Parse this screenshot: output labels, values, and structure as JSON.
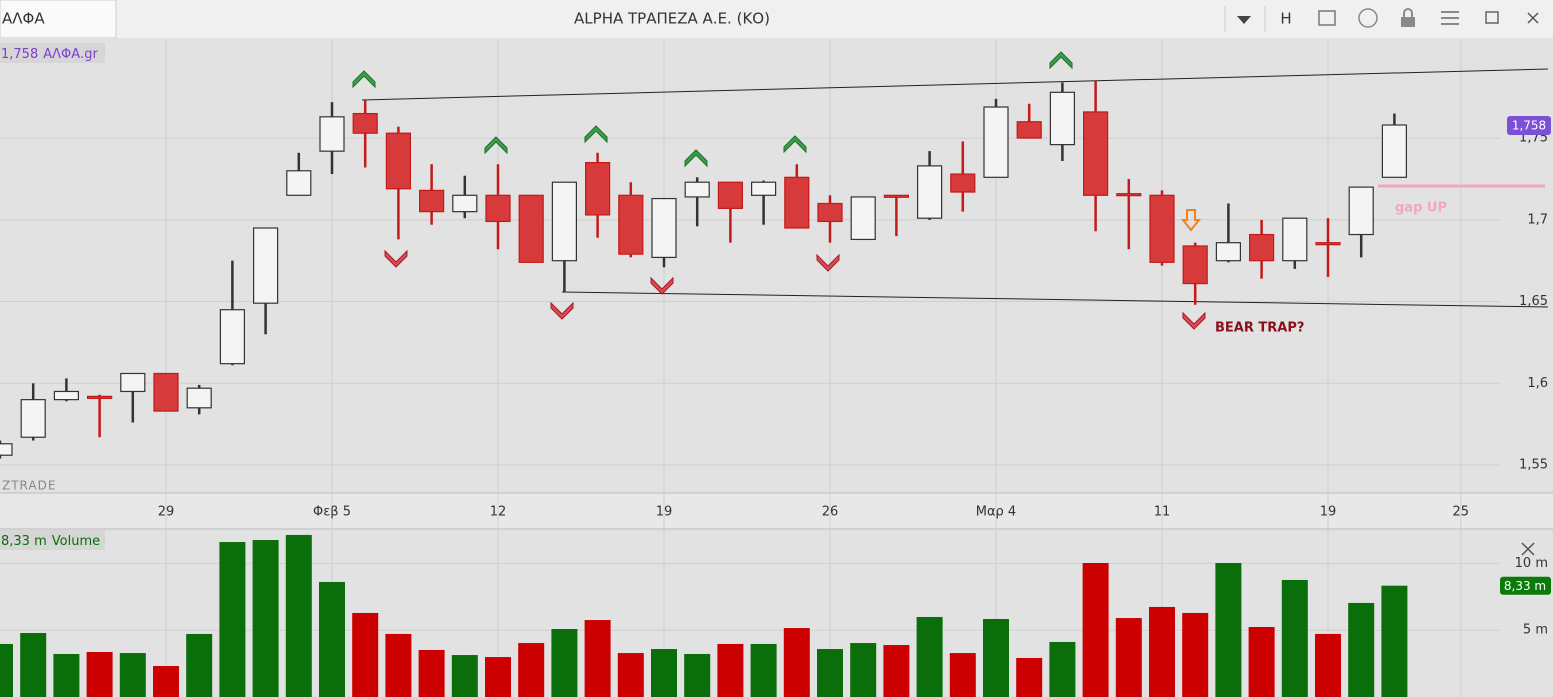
{
  "window": {
    "tab": "ΑΛΦΑ",
    "title": "ALPHA ΤΡΑΠΕΖΑ Α.Ε. (ΚΟ)",
    "button": "H"
  },
  "watermark": "ZTRADE",
  "chart_data": [
    {
      "type": "candlestick",
      "series_name": "ΑΛΦΑ.gr",
      "last_label": "1,758",
      "categories": [
        null,
        null,
        null,
        null,
        null,
        "29",
        null,
        null,
        null,
        null,
        "Φεβ 5",
        null,
        null,
        null,
        null,
        "12",
        null,
        null,
        null,
        null,
        "19",
        null,
        null,
        null,
        null,
        "26",
        null,
        null,
        null,
        null,
        "Μαρ 4",
        null,
        null,
        null,
        null,
        "11",
        null,
        null,
        null,
        null,
        "19",
        null,
        null,
        null,
        "25"
      ],
      "open": [
        1.556,
        1.567,
        1.59,
        1.592,
        1.595,
        1.606,
        1.585,
        1.612,
        1.649,
        1.715,
        1.742,
        1.765,
        1.753,
        1.718,
        1.705,
        1.715,
        1.715,
        1.675,
        1.735,
        1.715,
        1.677,
        1.714,
        1.723,
        1.715,
        1.726,
        1.71,
        1.688,
        1.715,
        1.701,
        1.728,
        1.726,
        1.76,
        1.746,
        1.766,
        1.716,
        1.715,
        1.684,
        1.675,
        1.691,
        1.675,
        1.686,
        1.691,
        1.726,
        null,
        null
      ],
      "high": [
        1.565,
        1.6,
        1.603,
        1.593,
        1.606,
        1.606,
        1.599,
        1.675,
        1.695,
        1.741,
        1.772,
        1.773,
        1.757,
        1.734,
        1.727,
        1.734,
        1.715,
        1.723,
        1.741,
        1.723,
        1.713,
        1.726,
        1.723,
        1.724,
        1.734,
        1.715,
        1.714,
        1.715,
        1.742,
        1.748,
        1.774,
        1.771,
        1.784,
        1.785,
        1.725,
        1.718,
        1.686,
        1.71,
        1.7,
        1.701,
        1.701,
        1.72,
        1.765,
        null,
        null
      ],
      "low": [
        1.554,
        1.565,
        1.589,
        1.567,
        1.576,
        1.583,
        1.581,
        1.611,
        1.63,
        1.715,
        1.728,
        1.732,
        1.688,
        1.697,
        1.701,
        1.682,
        1.674,
        1.656,
        1.689,
        1.677,
        1.671,
        1.696,
        1.686,
        1.697,
        1.695,
        1.686,
        1.688,
        1.69,
        1.7,
        1.705,
        1.726,
        1.75,
        1.736,
        1.693,
        1.682,
        1.672,
        1.648,
        1.674,
        1.664,
        1.67,
        1.665,
        1.677,
        1.726,
        null,
        null
      ],
      "close": [
        1.563,
        1.59,
        1.595,
        1.591,
        1.606,
        1.583,
        1.597,
        1.645,
        1.695,
        1.73,
        1.763,
        1.753,
        1.719,
        1.705,
        1.715,
        1.699,
        1.674,
        1.723,
        1.703,
        1.679,
        1.713,
        1.723,
        1.707,
        1.723,
        1.695,
        1.699,
        1.714,
        1.714,
        1.733,
        1.717,
        1.769,
        1.75,
        1.778,
        1.715,
        1.715,
        1.674,
        1.661,
        1.686,
        1.675,
        1.701,
        1.685,
        1.72,
        1.758,
        null,
        null
      ],
      "up_color": "#f4f4f4",
      "down_color": "#d63a3a",
      "ylim": [
        1.5335,
        1.81
      ],
      "yticks": [
        {
          "value": 1.55,
          "label": "1,55"
        },
        {
          "value": 1.6,
          "label": "1,6"
        },
        {
          "value": 1.65,
          "label": "1,65"
        },
        {
          "value": 1.7,
          "label": "1,7"
        },
        {
          "value": 1.75,
          "label": "1,75"
        }
      ],
      "annotations": [
        "BEAR TRAP?",
        "gap UP"
      ],
      "grid": true
    },
    {
      "type": "bar",
      "series_name": "Volume",
      "last_label": "8,33 m",
      "values": [
        3.97,
        4.79,
        3.22,
        3.37,
        3.29,
        2.32,
        4.72,
        11.6,
        11.75,
        12.13,
        8.61,
        6.29,
        4.72,
        3.52,
        3.14,
        2.99,
        4.04,
        5.09,
        5.76,
        3.29,
        3.59,
        3.22,
        3.97,
        3.97,
        5.16,
        3.59,
        4.04,
        3.89,
        5.99,
        3.29,
        5.84,
        2.92,
        4.12,
        10.03,
        5.91,
        6.74,
        6.29,
        10.03,
        5.24,
        8.76,
        4.72,
        7.04,
        8.33
      ],
      "colors": [
        "#0a6e0a",
        "#0a6e0a",
        "#0a6e0a",
        "#cc0000",
        "#0a6e0a",
        "#cc0000",
        "#0a6e0a",
        "#0a6e0a",
        "#0a6e0a",
        "#0a6e0a",
        "#0a6e0a",
        "#cc0000",
        "#cc0000",
        "#cc0000",
        "#0a6e0a",
        "#cc0000",
        "#cc0000",
        "#0a6e0a",
        "#cc0000",
        "#cc0000",
        "#0a6e0a",
        "#0a6e0a",
        "#cc0000",
        "#0a6e0a",
        "#cc0000",
        "#0a6e0a",
        "#0a6e0a",
        "#cc0000",
        "#0a6e0a",
        "#cc0000",
        "#0a6e0a",
        "#cc0000",
        "#0a6e0a",
        "#cc0000",
        "#cc0000",
        "#cc0000",
        "#cc0000",
        "#0a6e0a",
        "#cc0000",
        "#0a6e0a",
        "#cc0000",
        "#0a6e0a",
        "#0a6e0a"
      ],
      "ylim": [
        0,
        12.5
      ],
      "yticks": [
        {
          "value": 5,
          "label": "5 m"
        },
        {
          "value": 10,
          "label": "10 m"
        }
      ],
      "grid": true
    }
  ]
}
